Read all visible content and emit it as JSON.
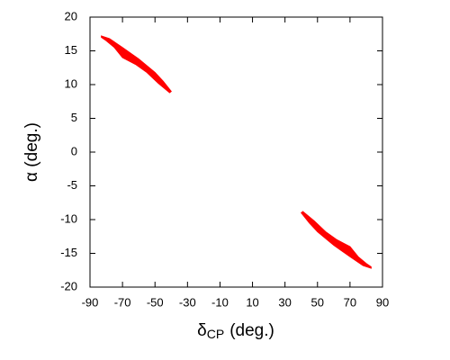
{
  "chart_data": {
    "type": "region",
    "x_label": "δ",
    "x_label_sub": "CP",
    "x_label_unit": "(deg.)",
    "y_label": "α (deg.)",
    "xlim": [
      -90,
      90
    ],
    "xticks": [
      -90,
      -70,
      -50,
      -30,
      -10,
      10,
      30,
      50,
      70,
      90
    ],
    "ylim": [
      -20,
      20
    ],
    "yticks": [
      -20,
      -15,
      -10,
      -5,
      0,
      5,
      10,
      15,
      20
    ],
    "grid": false,
    "series": [
      {
        "color": "#ff0000",
        "x": [
          -83,
          -78,
          -70,
          -60,
          -50,
          -45,
          -40,
          -41,
          -48,
          -55,
          -62,
          -70,
          -75,
          -80,
          -83
        ],
        "values": [
          17.2,
          16.8,
          15.5,
          13.8,
          11.8,
          10.5,
          9,
          8.8,
          10.2,
          11.8,
          13,
          14,
          15.5,
          16.5,
          17
        ]
      },
      {
        "color": "#ff0000",
        "x": [
          83,
          78,
          70,
          60,
          50,
          45,
          40,
          41,
          48,
          55,
          62,
          70,
          75,
          80,
          83
        ],
        "values": [
          -17.2,
          -16.8,
          -15.5,
          -13.8,
          -11.8,
          -10.5,
          -9,
          -8.8,
          -10.2,
          -11.8,
          -13,
          -14,
          -15.5,
          -16.5,
          -17
        ]
      }
    ]
  }
}
